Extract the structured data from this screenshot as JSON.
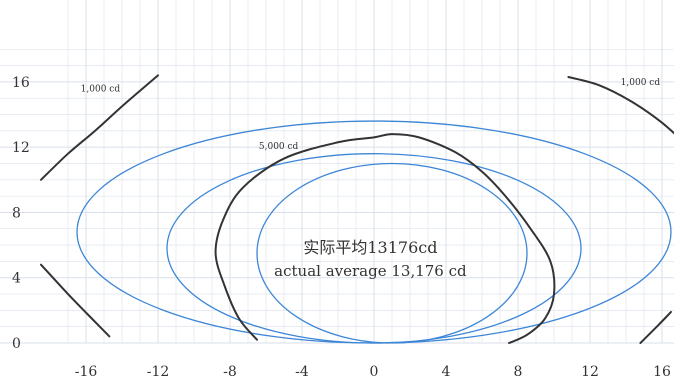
{
  "chart_data": {
    "type": "line",
    "title": "",
    "xlabel": "",
    "ylabel": "",
    "xlim": [
      -17.5,
      16.5
    ],
    "ylim": [
      -0.3,
      18
    ],
    "grid": true,
    "x_ticks": [
      -16,
      -12,
      -8,
      -4,
      0,
      4,
      8,
      12,
      16
    ],
    "y_ticks": [
      0,
      4,
      8,
      12,
      16
    ],
    "x_tick_labels": [
      "-16",
      "-12",
      "-8",
      "-4",
      "0",
      "4",
      "8",
      "12",
      "16"
    ],
    "y_tick_labels": [
      "0",
      "4",
      "8",
      "12",
      "16"
    ],
    "colors": {
      "ellipse": "#3d86d6",
      "measured": "#333333",
      "grid": "#d9e0ea"
    },
    "ellipses": [
      {
        "cx": 0,
        "cy": 6.8,
        "rx": 16.5,
        "ry": 6.8
      },
      {
        "cx": 0,
        "cy": 5.8,
        "rx": 11.5,
        "ry": 5.8
      },
      {
        "cx": 1,
        "cy": 5.5,
        "rx": 7.5,
        "ry": 5.5
      }
    ],
    "measured_series": [
      {
        "label": "1,000 cd",
        "points": [
          [
            -18.5,
            10.0
          ],
          [
            -17.0,
            11.6
          ],
          [
            -15.5,
            13.0
          ],
          [
            -13.9,
            14.6
          ],
          [
            -12.0,
            16.4
          ]
        ]
      },
      {
        "label": "",
        "points": [
          [
            -18.5,
            4.8
          ],
          [
            -17.0,
            3.0
          ],
          [
            -15.5,
            1.3
          ],
          [
            -14.7,
            0.4
          ]
        ]
      },
      {
        "label": "1,000 cd",
        "points": [
          [
            10.8,
            16.3
          ],
          [
            12.5,
            15.8
          ],
          [
            14.3,
            14.8
          ],
          [
            16.0,
            13.5
          ],
          [
            17.5,
            12.0
          ]
        ]
      },
      {
        "label": "",
        "points": [
          [
            14.8,
            0.0
          ],
          [
            15.8,
            1.1
          ],
          [
            16.5,
            1.9
          ]
        ]
      },
      {
        "label": "5,000 cd",
        "points": [
          [
            -6.5,
            0.2
          ],
          [
            -7.5,
            1.5
          ],
          [
            -8.3,
            3.5
          ],
          [
            -8.8,
            5.5
          ],
          [
            -8.4,
            7.5
          ],
          [
            -7.3,
            9.5
          ],
          [
            -5.0,
            11.3
          ],
          [
            -2.0,
            12.3
          ],
          [
            0.0,
            12.6
          ],
          [
            1.0,
            12.8
          ],
          [
            2.5,
            12.6
          ],
          [
            4.5,
            11.7
          ],
          [
            6.0,
            10.5
          ],
          [
            7.3,
            9.0
          ],
          [
            8.7,
            7.0
          ],
          [
            9.8,
            5.0
          ],
          [
            10.0,
            3.0
          ],
          [
            9.5,
            1.5
          ],
          [
            8.5,
            0.5
          ],
          [
            7.5,
            0.0
          ]
        ]
      }
    ],
    "label_positions": [
      [
        -15.2,
        15.4
      ],
      [
        14.8,
        15.8
      ],
      [
        -5.3,
        11.9
      ]
    ],
    "annotation": {
      "line1": "实际平均13176cd",
      "line2": "actual average 13,176 cd"
    }
  }
}
